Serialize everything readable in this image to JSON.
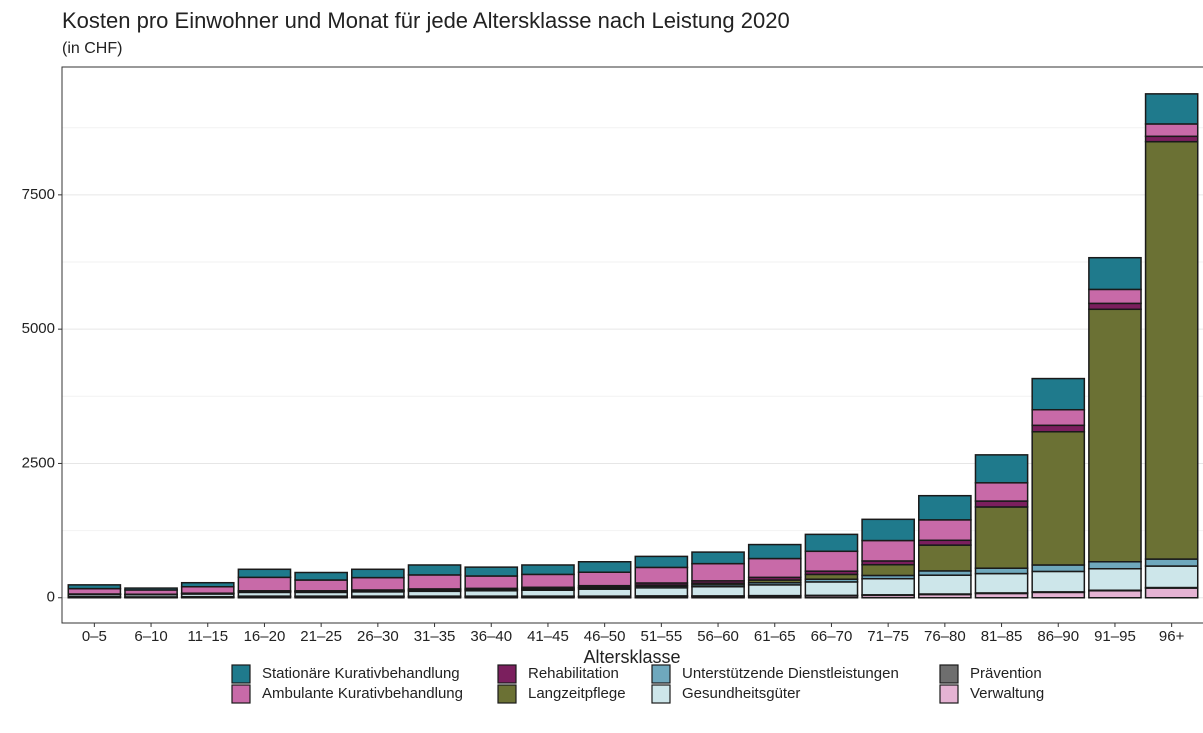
{
  "chart_data": {
    "type": "stacked_bar",
    "title": "Kosten pro Einwohner und Monat für jede Altersklasse nach Leistung 2020",
    "subtitle": "(in CHF)",
    "x_label": "Altersklasse",
    "categories": [
      "0–5",
      "6–10",
      "11–15",
      "16–20",
      "21–25",
      "26–30",
      "31–35",
      "36–40",
      "41–45",
      "46–50",
      "51–55",
      "56–60",
      "61–65",
      "66–70",
      "71–75",
      "76–80",
      "81–85",
      "86–90",
      "91–95",
      "96+"
    ],
    "series": [
      {
        "name": "Stationäre Kurativbehandlung",
        "color": "#1f7a8c",
        "values": [
          70,
          35,
          75,
          150,
          140,
          155,
          185,
          165,
          175,
          195,
          205,
          215,
          260,
          315,
          395,
          450,
          520,
          580,
          590,
          560
        ]
      },
      {
        "name": "Ambulante Kurativbehandlung",
        "color": "#c86aa8",
        "values": [
          100,
          80,
          120,
          250,
          200,
          230,
          260,
          230,
          240,
          250,
          290,
          320,
          350,
          370,
          380,
          380,
          340,
          290,
          260,
          230
        ]
      },
      {
        "name": "Rehabilitation",
        "color": "#7b1f5e",
        "values": [
          5,
          4,
          5,
          10,
          10,
          15,
          20,
          20,
          25,
          30,
          40,
          45,
          50,
          60,
          70,
          90,
          110,
          120,
          110,
          100
        ]
      },
      {
        "name": "Langzeitpflege",
        "color": "#6b7134",
        "values": [
          0,
          0,
          0,
          5,
          5,
          5,
          5,
          5,
          10,
          10,
          20,
          30,
          50,
          90,
          200,
          480,
          1140,
          2480,
          4700,
          7770
        ]
      },
      {
        "name": "Unterstützende Dienstleistungen",
        "color": "#6fa8bd",
        "values": [
          5,
          5,
          10,
          15,
          15,
          15,
          20,
          20,
          20,
          25,
          30,
          35,
          40,
          50,
          60,
          80,
          100,
          120,
          130,
          130
        ]
      },
      {
        "name": "Gesundheitsgüter",
        "color": "#cde6ea",
        "values": [
          40,
          40,
          50,
          70,
          70,
          80,
          90,
          100,
          110,
          130,
          150,
          170,
          200,
          250,
          300,
          350,
          360,
          380,
          400,
          400
        ]
      },
      {
        "name": "Prävention",
        "color": "#6e6e6e",
        "values": [
          10,
          8,
          10,
          10,
          10,
          10,
          10,
          10,
          10,
          10,
          10,
          10,
          10,
          10,
          10,
          10,
          10,
          10,
          10,
          10
        ]
      },
      {
        "name": "Verwaltung",
        "color": "#e5b3d3",
        "values": [
          10,
          8,
          10,
          20,
          20,
          20,
          20,
          20,
          20,
          20,
          25,
          25,
          30,
          35,
          45,
          60,
          80,
          100,
          130,
          180
        ]
      }
    ],
    "ylim": [
      -470,
      9880
    ],
    "yticks": [
      0,
      2500,
      5000,
      7500
    ],
    "grid": true,
    "legend": "bottom"
  }
}
